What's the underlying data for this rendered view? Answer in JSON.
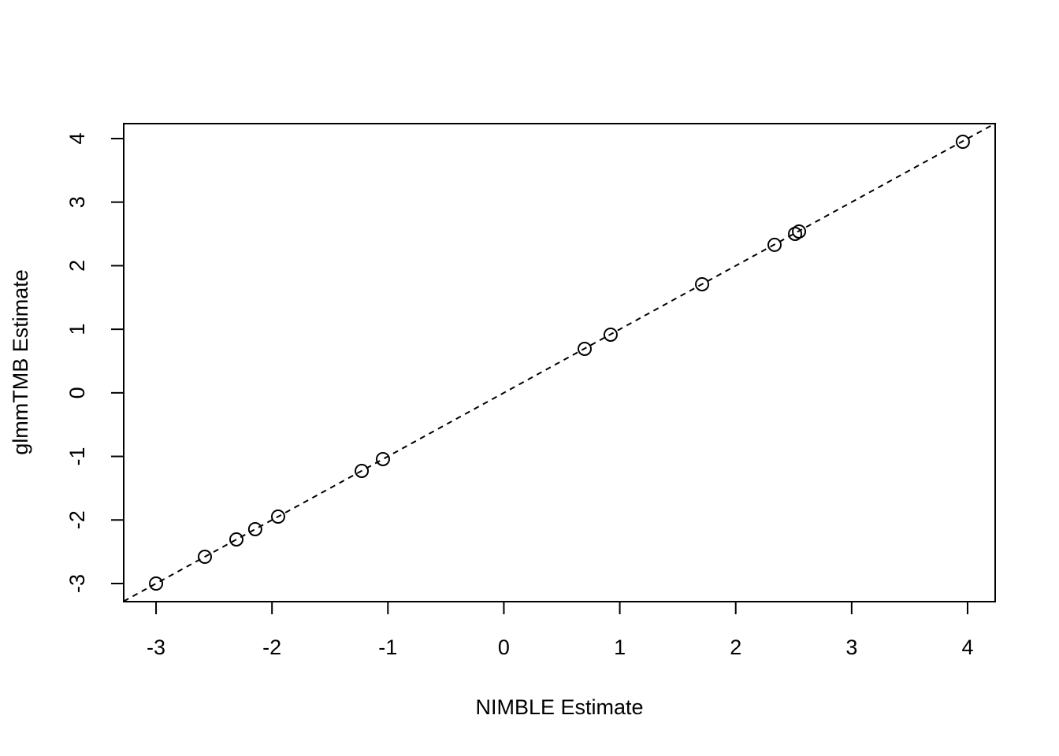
{
  "chart_data": {
    "type": "scatter",
    "x_label": "NIMBLE Estimate",
    "y_label": "glmmTMB Estimate",
    "x": [
      -3.0,
      -2.579,
      -2.307,
      -2.145,
      -1.947,
      -1.226,
      -1.043,
      0.697,
      0.921,
      1.71,
      2.335,
      2.512,
      2.546,
      3.959
    ],
    "values": [
      -3.0,
      -2.579,
      -2.306,
      -2.145,
      -1.947,
      -1.228,
      -1.042,
      0.692,
      0.915,
      1.708,
      2.328,
      2.501,
      2.538,
      3.95
    ],
    "color": "#000000",
    "xlim": [
      -3.279,
      4.238
    ],
    "ylim": [
      -3.285,
      4.235
    ],
    "xticks": [
      -3,
      -2,
      -1,
      0,
      1,
      2,
      3,
      4
    ],
    "yticks": [
      -3,
      -2,
      -1,
      0,
      1,
      2,
      3,
      4
    ],
    "reference_line": {
      "intercept": 0,
      "slope": 1,
      "style": "dashed"
    },
    "grid": false
  }
}
